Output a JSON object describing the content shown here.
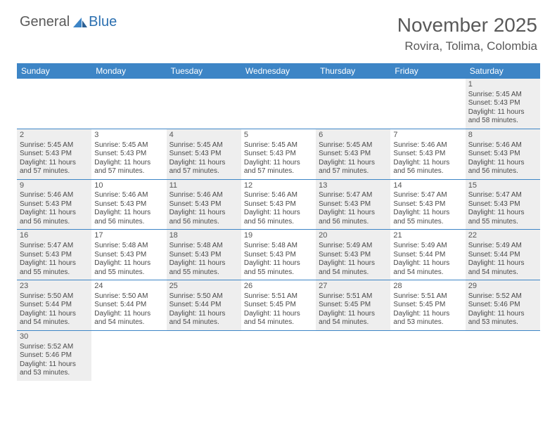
{
  "logo": {
    "general": "General",
    "blue": "Blue"
  },
  "title": "November 2025",
  "location": "Rovira, Tolima, Colombia",
  "colors": {
    "header_bg": "#3d85c6",
    "header_text": "#ffffff",
    "shade_bg": "#eeeeee",
    "border": "#3d85c6",
    "text": "#4a4a4a",
    "title_text": "#595959"
  },
  "day_headers": [
    "Sunday",
    "Monday",
    "Tuesday",
    "Wednesday",
    "Thursday",
    "Friday",
    "Saturday"
  ],
  "weeks": [
    [
      null,
      null,
      null,
      null,
      null,
      null,
      {
        "num": "1",
        "sunrise": "Sunrise: 5:45 AM",
        "sunset": "Sunset: 5:43 PM",
        "daylight": "Daylight: 11 hours and 58 minutes."
      }
    ],
    [
      {
        "num": "2",
        "sunrise": "Sunrise: 5:45 AM",
        "sunset": "Sunset: 5:43 PM",
        "daylight": "Daylight: 11 hours and 57 minutes."
      },
      {
        "num": "3",
        "sunrise": "Sunrise: 5:45 AM",
        "sunset": "Sunset: 5:43 PM",
        "daylight": "Daylight: 11 hours and 57 minutes."
      },
      {
        "num": "4",
        "sunrise": "Sunrise: 5:45 AM",
        "sunset": "Sunset: 5:43 PM",
        "daylight": "Daylight: 11 hours and 57 minutes."
      },
      {
        "num": "5",
        "sunrise": "Sunrise: 5:45 AM",
        "sunset": "Sunset: 5:43 PM",
        "daylight": "Daylight: 11 hours and 57 minutes."
      },
      {
        "num": "6",
        "sunrise": "Sunrise: 5:45 AM",
        "sunset": "Sunset: 5:43 PM",
        "daylight": "Daylight: 11 hours and 57 minutes."
      },
      {
        "num": "7",
        "sunrise": "Sunrise: 5:46 AM",
        "sunset": "Sunset: 5:43 PM",
        "daylight": "Daylight: 11 hours and 56 minutes."
      },
      {
        "num": "8",
        "sunrise": "Sunrise: 5:46 AM",
        "sunset": "Sunset: 5:43 PM",
        "daylight": "Daylight: 11 hours and 56 minutes."
      }
    ],
    [
      {
        "num": "9",
        "sunrise": "Sunrise: 5:46 AM",
        "sunset": "Sunset: 5:43 PM",
        "daylight": "Daylight: 11 hours and 56 minutes."
      },
      {
        "num": "10",
        "sunrise": "Sunrise: 5:46 AM",
        "sunset": "Sunset: 5:43 PM",
        "daylight": "Daylight: 11 hours and 56 minutes."
      },
      {
        "num": "11",
        "sunrise": "Sunrise: 5:46 AM",
        "sunset": "Sunset: 5:43 PM",
        "daylight": "Daylight: 11 hours and 56 minutes."
      },
      {
        "num": "12",
        "sunrise": "Sunrise: 5:46 AM",
        "sunset": "Sunset: 5:43 PM",
        "daylight": "Daylight: 11 hours and 56 minutes."
      },
      {
        "num": "13",
        "sunrise": "Sunrise: 5:47 AM",
        "sunset": "Sunset: 5:43 PM",
        "daylight": "Daylight: 11 hours and 56 minutes."
      },
      {
        "num": "14",
        "sunrise": "Sunrise: 5:47 AM",
        "sunset": "Sunset: 5:43 PM",
        "daylight": "Daylight: 11 hours and 55 minutes."
      },
      {
        "num": "15",
        "sunrise": "Sunrise: 5:47 AM",
        "sunset": "Sunset: 5:43 PM",
        "daylight": "Daylight: 11 hours and 55 minutes."
      }
    ],
    [
      {
        "num": "16",
        "sunrise": "Sunrise: 5:47 AM",
        "sunset": "Sunset: 5:43 PM",
        "daylight": "Daylight: 11 hours and 55 minutes."
      },
      {
        "num": "17",
        "sunrise": "Sunrise: 5:48 AM",
        "sunset": "Sunset: 5:43 PM",
        "daylight": "Daylight: 11 hours and 55 minutes."
      },
      {
        "num": "18",
        "sunrise": "Sunrise: 5:48 AM",
        "sunset": "Sunset: 5:43 PM",
        "daylight": "Daylight: 11 hours and 55 minutes."
      },
      {
        "num": "19",
        "sunrise": "Sunrise: 5:48 AM",
        "sunset": "Sunset: 5:43 PM",
        "daylight": "Daylight: 11 hours and 55 minutes."
      },
      {
        "num": "20",
        "sunrise": "Sunrise: 5:49 AM",
        "sunset": "Sunset: 5:43 PM",
        "daylight": "Daylight: 11 hours and 54 minutes."
      },
      {
        "num": "21",
        "sunrise": "Sunrise: 5:49 AM",
        "sunset": "Sunset: 5:44 PM",
        "daylight": "Daylight: 11 hours and 54 minutes."
      },
      {
        "num": "22",
        "sunrise": "Sunrise: 5:49 AM",
        "sunset": "Sunset: 5:44 PM",
        "daylight": "Daylight: 11 hours and 54 minutes."
      }
    ],
    [
      {
        "num": "23",
        "sunrise": "Sunrise: 5:50 AM",
        "sunset": "Sunset: 5:44 PM",
        "daylight": "Daylight: 11 hours and 54 minutes."
      },
      {
        "num": "24",
        "sunrise": "Sunrise: 5:50 AM",
        "sunset": "Sunset: 5:44 PM",
        "daylight": "Daylight: 11 hours and 54 minutes."
      },
      {
        "num": "25",
        "sunrise": "Sunrise: 5:50 AM",
        "sunset": "Sunset: 5:44 PM",
        "daylight": "Daylight: 11 hours and 54 minutes."
      },
      {
        "num": "26",
        "sunrise": "Sunrise: 5:51 AM",
        "sunset": "Sunset: 5:45 PM",
        "daylight": "Daylight: 11 hours and 54 minutes."
      },
      {
        "num": "27",
        "sunrise": "Sunrise: 5:51 AM",
        "sunset": "Sunset: 5:45 PM",
        "daylight": "Daylight: 11 hours and 54 minutes."
      },
      {
        "num": "28",
        "sunrise": "Sunrise: 5:51 AM",
        "sunset": "Sunset: 5:45 PM",
        "daylight": "Daylight: 11 hours and 53 minutes."
      },
      {
        "num": "29",
        "sunrise": "Sunrise: 5:52 AM",
        "sunset": "Sunset: 5:46 PM",
        "daylight": "Daylight: 11 hours and 53 minutes."
      }
    ],
    [
      {
        "num": "30",
        "sunrise": "Sunrise: 5:52 AM",
        "sunset": "Sunset: 5:46 PM",
        "daylight": "Daylight: 11 hours and 53 minutes."
      },
      null,
      null,
      null,
      null,
      null,
      null
    ]
  ]
}
